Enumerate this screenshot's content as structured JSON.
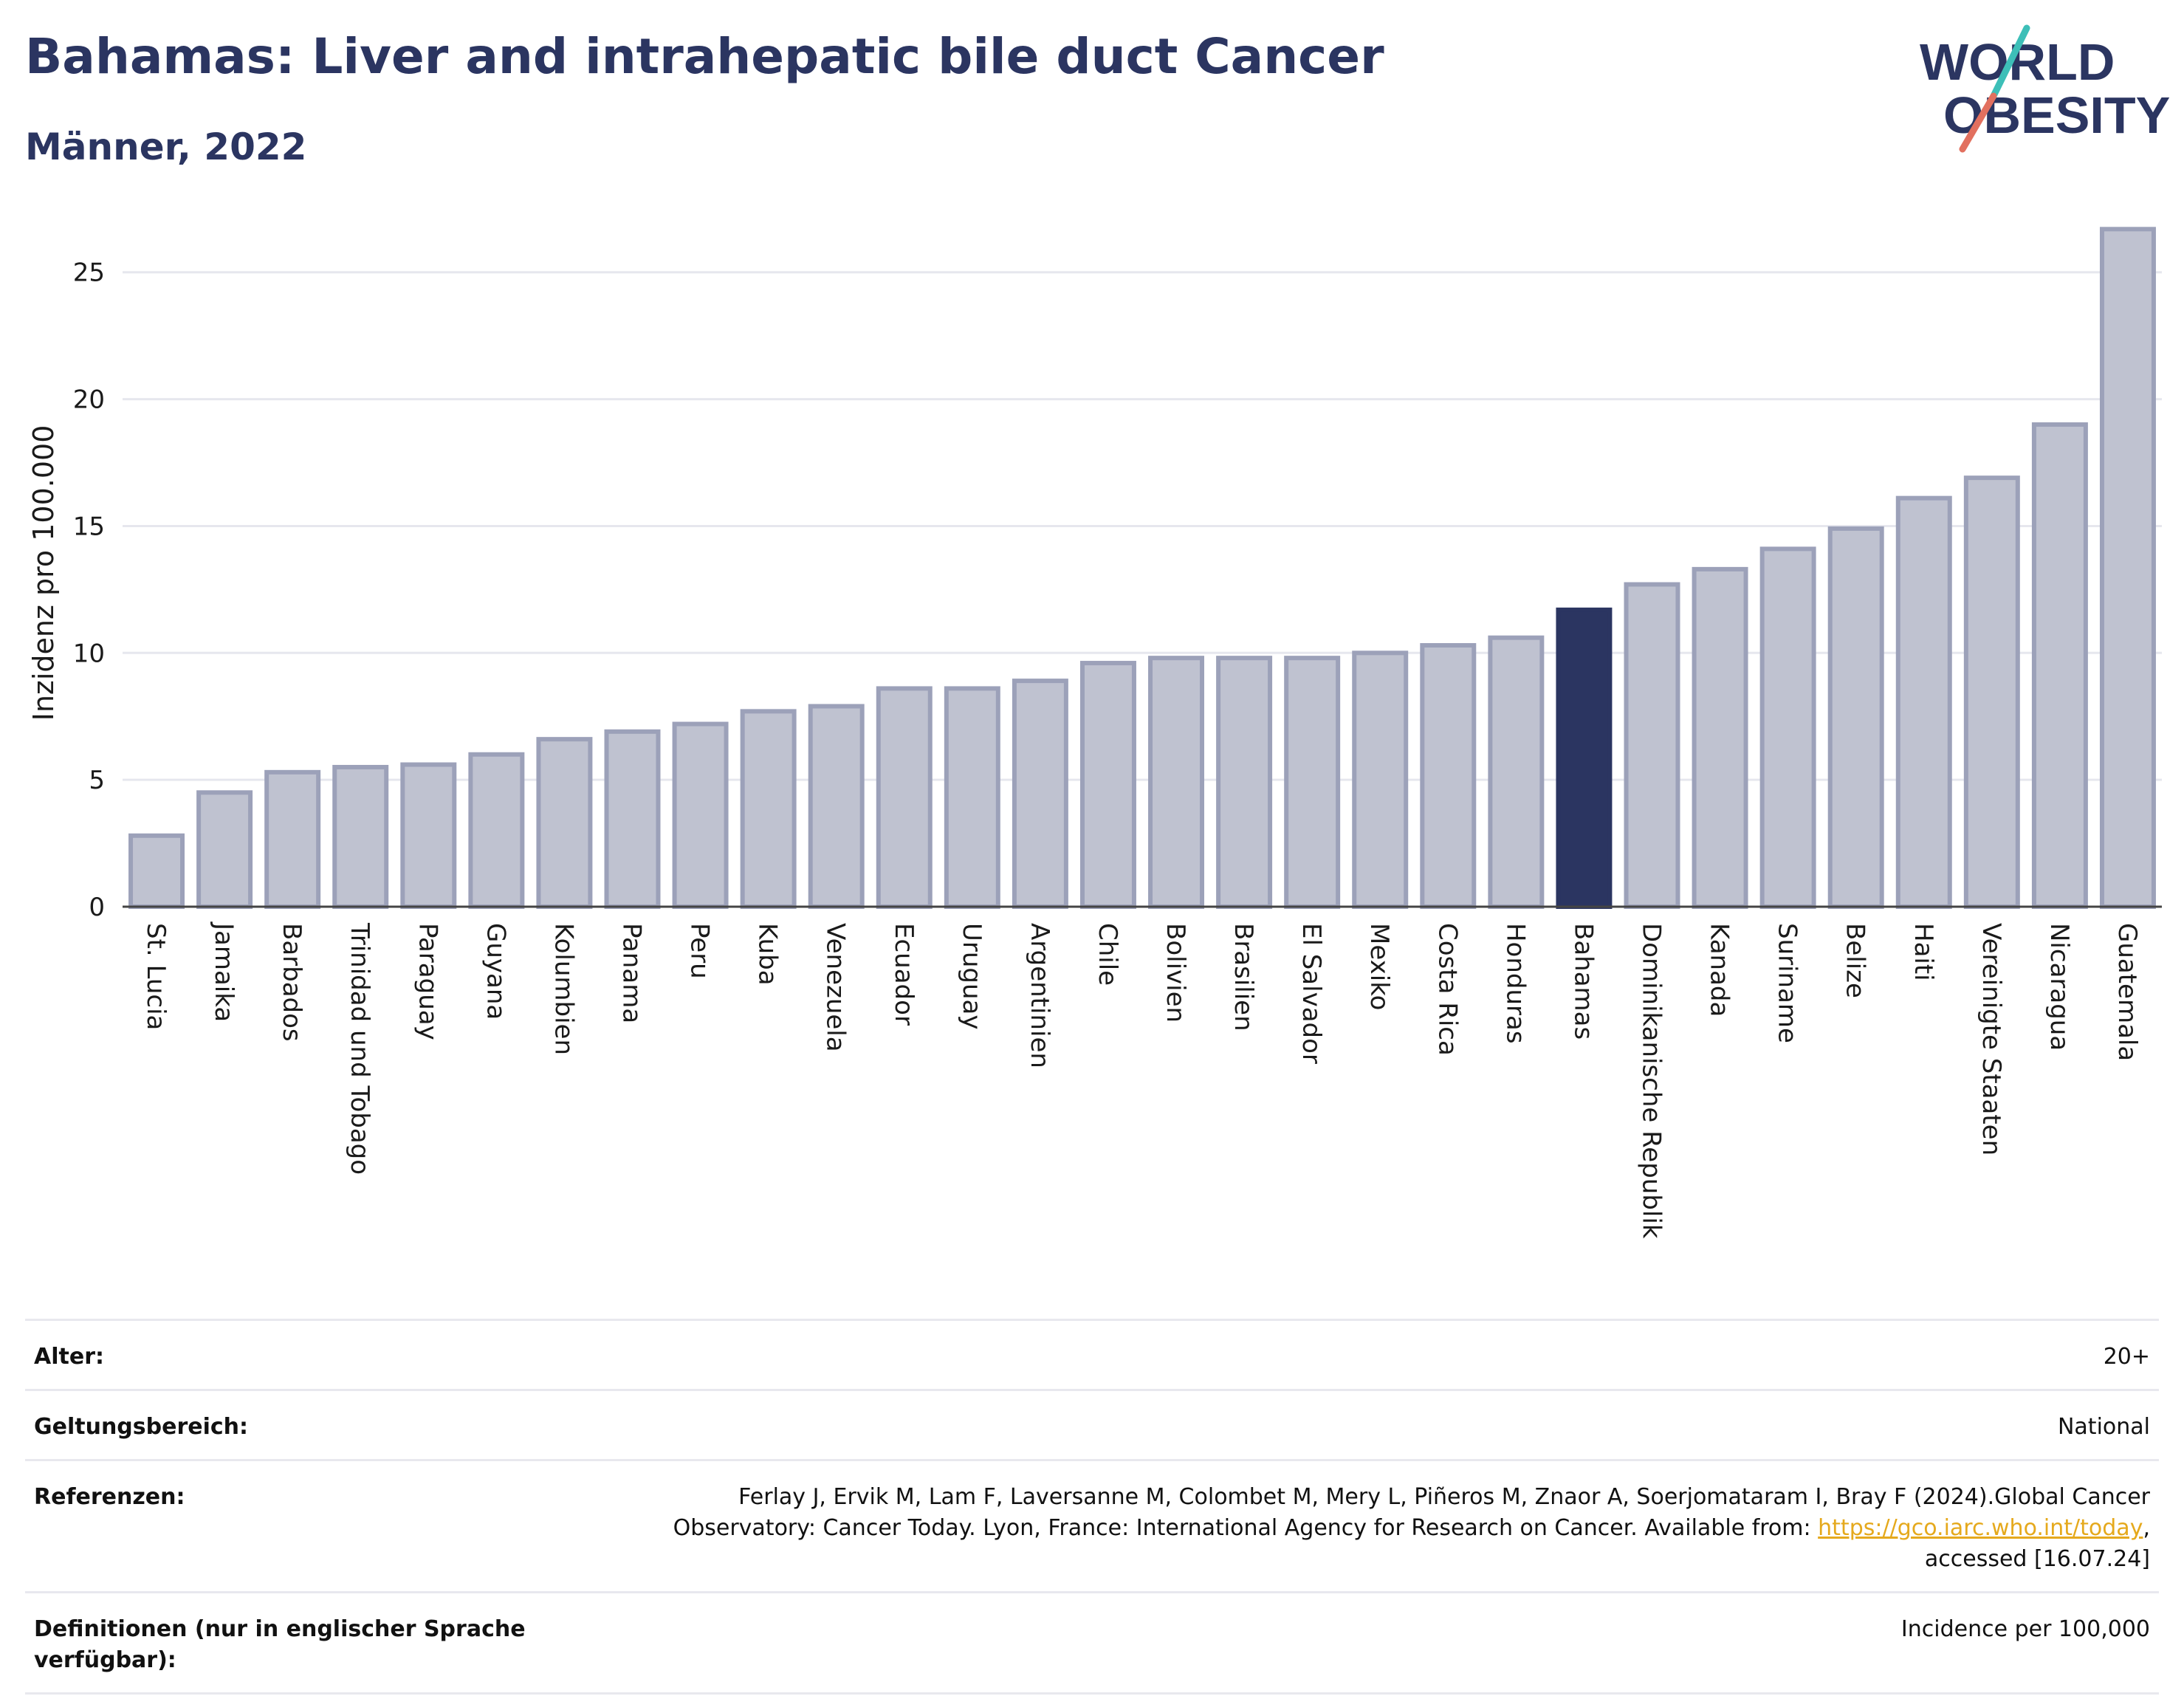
{
  "header": {
    "title": "Bahamas: Liver and intrahepatic bile duct Cancer",
    "subtitle": "Männer, 2022"
  },
  "logo": {
    "line1": "WORLD",
    "line2": "OBESITY",
    "accent_colors": [
      "#3dbfb8",
      "#e2705f"
    ]
  },
  "chart_data": {
    "type": "bar",
    "ylabel": "Inzidenz pro 100.000",
    "ylim": [
      0,
      27
    ],
    "yticks": [
      0,
      5,
      10,
      15,
      20,
      25
    ],
    "grid": true,
    "highlight": "Bahamas",
    "colors": {
      "bar": "#bfc2d0",
      "bar_edge": "#9ca1b9",
      "highlight": "#2b3561"
    },
    "categories": [
      "St. Lucia",
      "Jamaika",
      "Barbados",
      "Trinidad und Tobago",
      "Paraguay",
      "Guyana",
      "Kolumbien",
      "Panama",
      "Peru",
      "Kuba",
      "Venezuela",
      "Ecuador",
      "Uruguay",
      "Argentinien",
      "Chile",
      "Bolivien",
      "Brasilien",
      "El Salvador",
      "Mexiko",
      "Costa Rica",
      "Honduras",
      "Bahamas",
      "Dominikanische Republik",
      "Kanada",
      "Suriname",
      "Belize",
      "Haiti",
      "Vereinigte Staaten",
      "Nicaragua",
      "Guatemala"
    ],
    "values": [
      2.8,
      4.5,
      5.3,
      5.5,
      5.6,
      6.0,
      6.6,
      6.9,
      7.2,
      7.7,
      7.9,
      8.6,
      8.6,
      8.9,
      9.6,
      9.8,
      9.8,
      9.8,
      10.0,
      10.3,
      10.6,
      11.7,
      12.7,
      13.3,
      14.1,
      14.9,
      16.1,
      16.9,
      19.0,
      26.7
    ]
  },
  "info": [
    {
      "key": "Alter:",
      "value": "20+"
    },
    {
      "key": "Geltungsbereich:",
      "value": "National"
    },
    {
      "key": "Referenzen:",
      "value_pre": "Ferlay J, Ervik M, Lam F, Laversanne M, Colombet M, Mery L, Piñeros M, Znaor A, Soerjomataram I, Bray F (2024).Global Cancer Observatory: Cancer Today. Lyon, France: International Agency for Research on Cancer. Available from: ",
      "link": "https://gco.iarc.who.int/today",
      "value_post": ", accessed [16.07.24]"
    },
    {
      "key": "Definitionen (nur in englischer Sprache verfügbar):",
      "value": "Incidence per 100,000"
    }
  ]
}
